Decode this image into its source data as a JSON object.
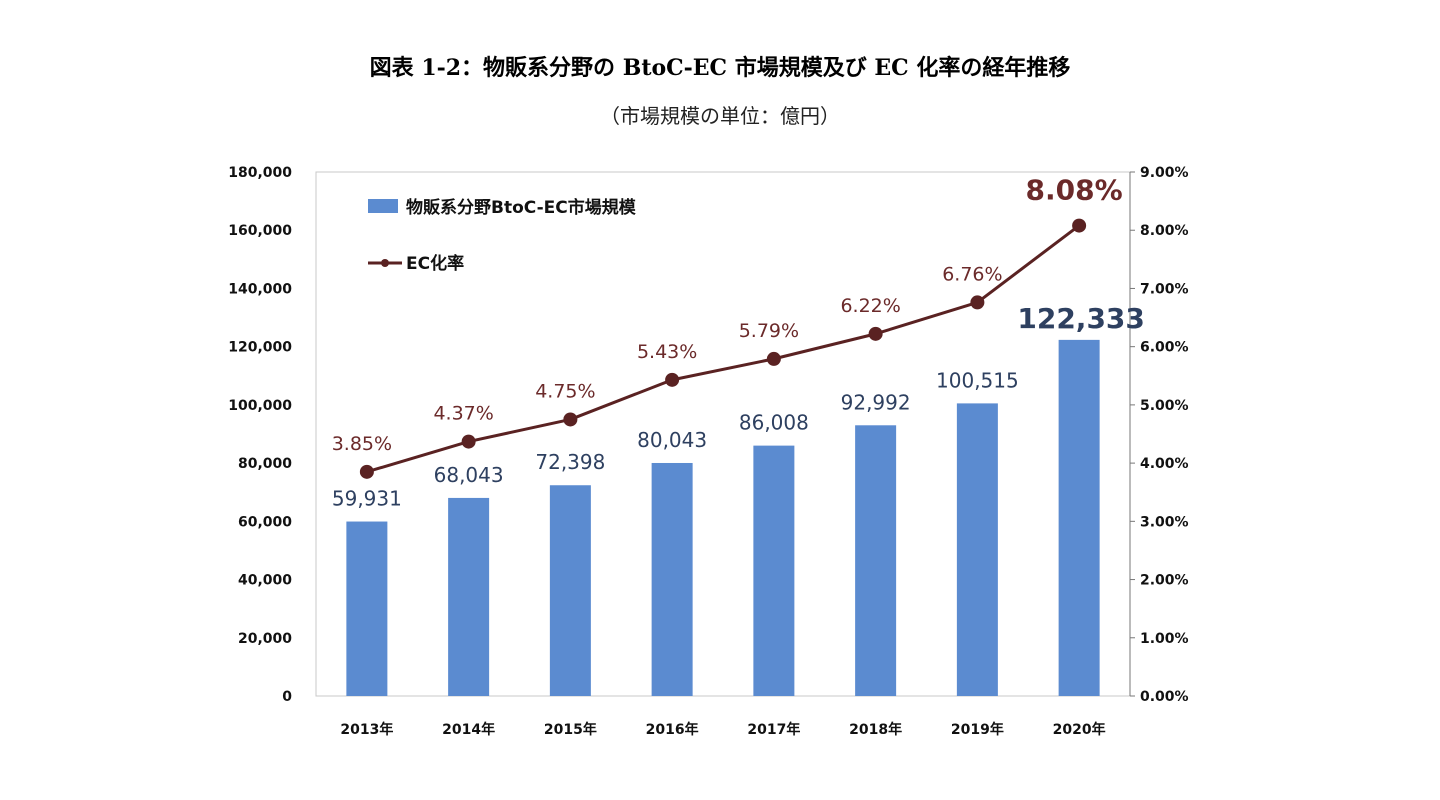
{
  "figure": {
    "title": "図表 1-2：物販系分野の BtoC-EC 市場規模及び EC 化率の経年推移",
    "subtitle": "（市場規模の単位：億円）"
  },
  "chart_data": {
    "type": "bar",
    "categories": [
      "2013年",
      "2014年",
      "2015年",
      "2016年",
      "2017年",
      "2018年",
      "2019年",
      "2020年"
    ],
    "series": [
      {
        "name": "物販系分野BtoC-EC市場規模",
        "type": "bar",
        "axis": "left",
        "values": [
          59931,
          68043,
          72398,
          80043,
          86008,
          92992,
          100515,
          122333
        ],
        "labels": [
          "59,931",
          "68,043",
          "72,398",
          "80,043",
          "86,008",
          "92,992",
          "100,515",
          "122,333"
        ]
      },
      {
        "name": "EC化率",
        "type": "line",
        "axis": "right",
        "values": [
          3.85,
          4.37,
          4.75,
          5.43,
          5.79,
          6.22,
          6.76,
          8.08
        ],
        "labels": [
          "3.85%",
          "4.37%",
          "4.75%",
          "5.43%",
          "5.79%",
          "6.22%",
          "6.76%",
          "8.08%"
        ]
      }
    ],
    "y_left": {
      "min": 0,
      "max": 180000,
      "ticks": [
        0,
        20000,
        40000,
        60000,
        80000,
        100000,
        120000,
        140000,
        160000,
        180000
      ],
      "tick_labels": [
        "0",
        "20,000",
        "40,000",
        "60,000",
        "80,000",
        "100,000",
        "120,000",
        "140,000",
        "160,000",
        "180,000"
      ]
    },
    "y_right": {
      "min": 0,
      "max": 9,
      "ticks": [
        0,
        1,
        2,
        3,
        4,
        5,
        6,
        7,
        8,
        9
      ],
      "tick_labels": [
        "0.00%",
        "1.00%",
        "2.00%",
        "3.00%",
        "4.00%",
        "5.00%",
        "6.00%",
        "7.00%",
        "8.00%",
        "9.00%"
      ]
    },
    "legend_position": "top-left",
    "grid": false,
    "colors": {
      "bar": "#5b8bd0",
      "line": "#5a2222",
      "bar_label": "#2e4060",
      "rate_label": "#6b2a2a"
    }
  }
}
